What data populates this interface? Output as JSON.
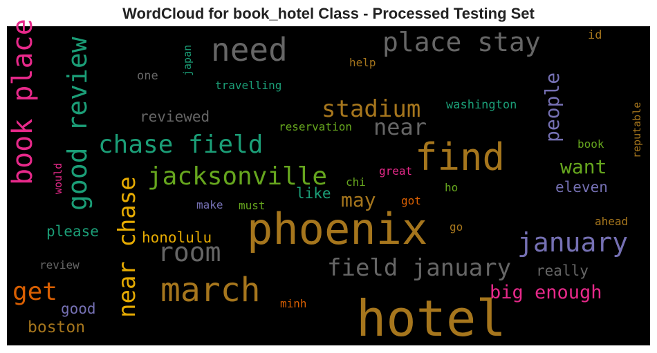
{
  "title": "WordCloud for book_hotel Class - Processed Testing Set",
  "words": [
    {
      "text": "hotel",
      "color": "#a6761d"
    },
    {
      "text": "phoenix",
      "color": "#a6761d"
    },
    {
      "text": "find",
      "color": "#a6761d"
    },
    {
      "text": "march",
      "color": "#a6761d"
    },
    {
      "text": "need",
      "color": "#666666"
    },
    {
      "text": "place stay",
      "color": "#666666"
    },
    {
      "text": "chase field",
      "color": "#1b9e77"
    },
    {
      "text": "jacksonville",
      "color": "#66a61e"
    },
    {
      "text": "stadium",
      "color": "#a6761d"
    },
    {
      "text": "near",
      "color": "#666666"
    },
    {
      "text": "january",
      "color": "#7570b3"
    },
    {
      "text": "field january",
      "color": "#666666"
    },
    {
      "text": "room",
      "color": "#666666"
    },
    {
      "text": "may",
      "color": "#a6761d"
    },
    {
      "text": "want",
      "color": "#66a61e"
    },
    {
      "text": "eleven",
      "color": "#7570b3"
    },
    {
      "text": "big enough",
      "color": "#e7298a"
    },
    {
      "text": "really",
      "color": "#666666"
    },
    {
      "text": "get",
      "color": "#d95f02"
    },
    {
      "text": "good",
      "color": "#7570b3"
    },
    {
      "text": "boston",
      "color": "#a6761d"
    },
    {
      "text": "honolulu",
      "color": "#e6ab02"
    },
    {
      "text": "please",
      "color": "#1b9e77"
    },
    {
      "text": "review",
      "color": "#666666"
    },
    {
      "text": "reviewed",
      "color": "#666666"
    },
    {
      "text": "reservation",
      "color": "#66a61e"
    },
    {
      "text": "travelling",
      "color": "#1b9e77"
    },
    {
      "text": "help",
      "color": "#a6761d"
    },
    {
      "text": "one",
      "color": "#666666"
    },
    {
      "text": "washington",
      "color": "#1b9e77"
    },
    {
      "text": "book",
      "color": "#66a61e"
    },
    {
      "text": "id",
      "color": "#a6761d"
    },
    {
      "text": "great",
      "color": "#e7298a"
    },
    {
      "text": "chi",
      "color": "#66a61e"
    },
    {
      "text": "like",
      "color": "#1b9e77"
    },
    {
      "text": "must",
      "color": "#66a61e"
    },
    {
      "text": "make",
      "color": "#7570b3"
    },
    {
      "text": "got",
      "color": "#d95f02"
    },
    {
      "text": "ho",
      "color": "#66a61e"
    },
    {
      "text": "go",
      "color": "#a6761d"
    },
    {
      "text": "ahead",
      "color": "#a6761d"
    },
    {
      "text": "minh",
      "color": "#d95f02"
    },
    {
      "text": "book place",
      "color": "#e7298a"
    },
    {
      "text": "good review",
      "color": "#1b9e77"
    },
    {
      "text": "near chase",
      "color": "#e6ab02"
    },
    {
      "text": "people",
      "color": "#7570b3"
    },
    {
      "text": "japan",
      "color": "#1b9e77"
    },
    {
      "text": "would",
      "color": "#e7298a"
    },
    {
      "text": "reputable",
      "color": "#a6761d"
    }
  ]
}
